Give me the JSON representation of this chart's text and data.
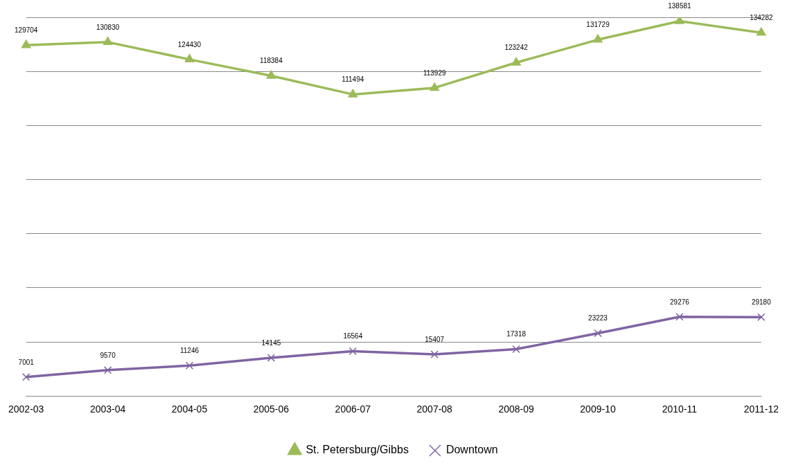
{
  "chart_data": {
    "type": "line",
    "categories": [
      "2002-03",
      "2003-04",
      "2004-05",
      "2005-06",
      "2006-07",
      "2007-08",
      "2008-09",
      "2009-10",
      "2010-11",
      "2011-12"
    ],
    "series": [
      {
        "name": "St. Petersburg/Gibbs",
        "color": "#9bbb59",
        "marker": "triangle",
        "values": [
          129704,
          130830,
          124430,
          118384,
          111494,
          113929,
          123242,
          131729,
          138581,
          134282
        ]
      },
      {
        "name": "Downtown",
        "color": "#8064a2",
        "marker": "cross",
        "values": [
          7001,
          9570,
          11246,
          14145,
          16564,
          15407,
          17318,
          23223,
          29276,
          29180
        ]
      }
    ],
    "ylim": [
      0,
      140000
    ],
    "yticks": [
      {
        "value": 0,
        "label": null
      },
      {
        "value": 20000,
        "label": null
      },
      {
        "value": 40000,
        "label": null
      },
      {
        "value": 60000,
        "label": null
      },
      {
        "value": 80000,
        "label": null
      },
      {
        "value": 100000,
        "label": null
      },
      {
        "value": 120000,
        "label": null
      },
      {
        "value": 140000,
        "label": null
      }
    ],
    "tick_labels": "x",
    "grid": "y",
    "legend": "bottom",
    "data_labels": true,
    "line_style": "solid"
  }
}
